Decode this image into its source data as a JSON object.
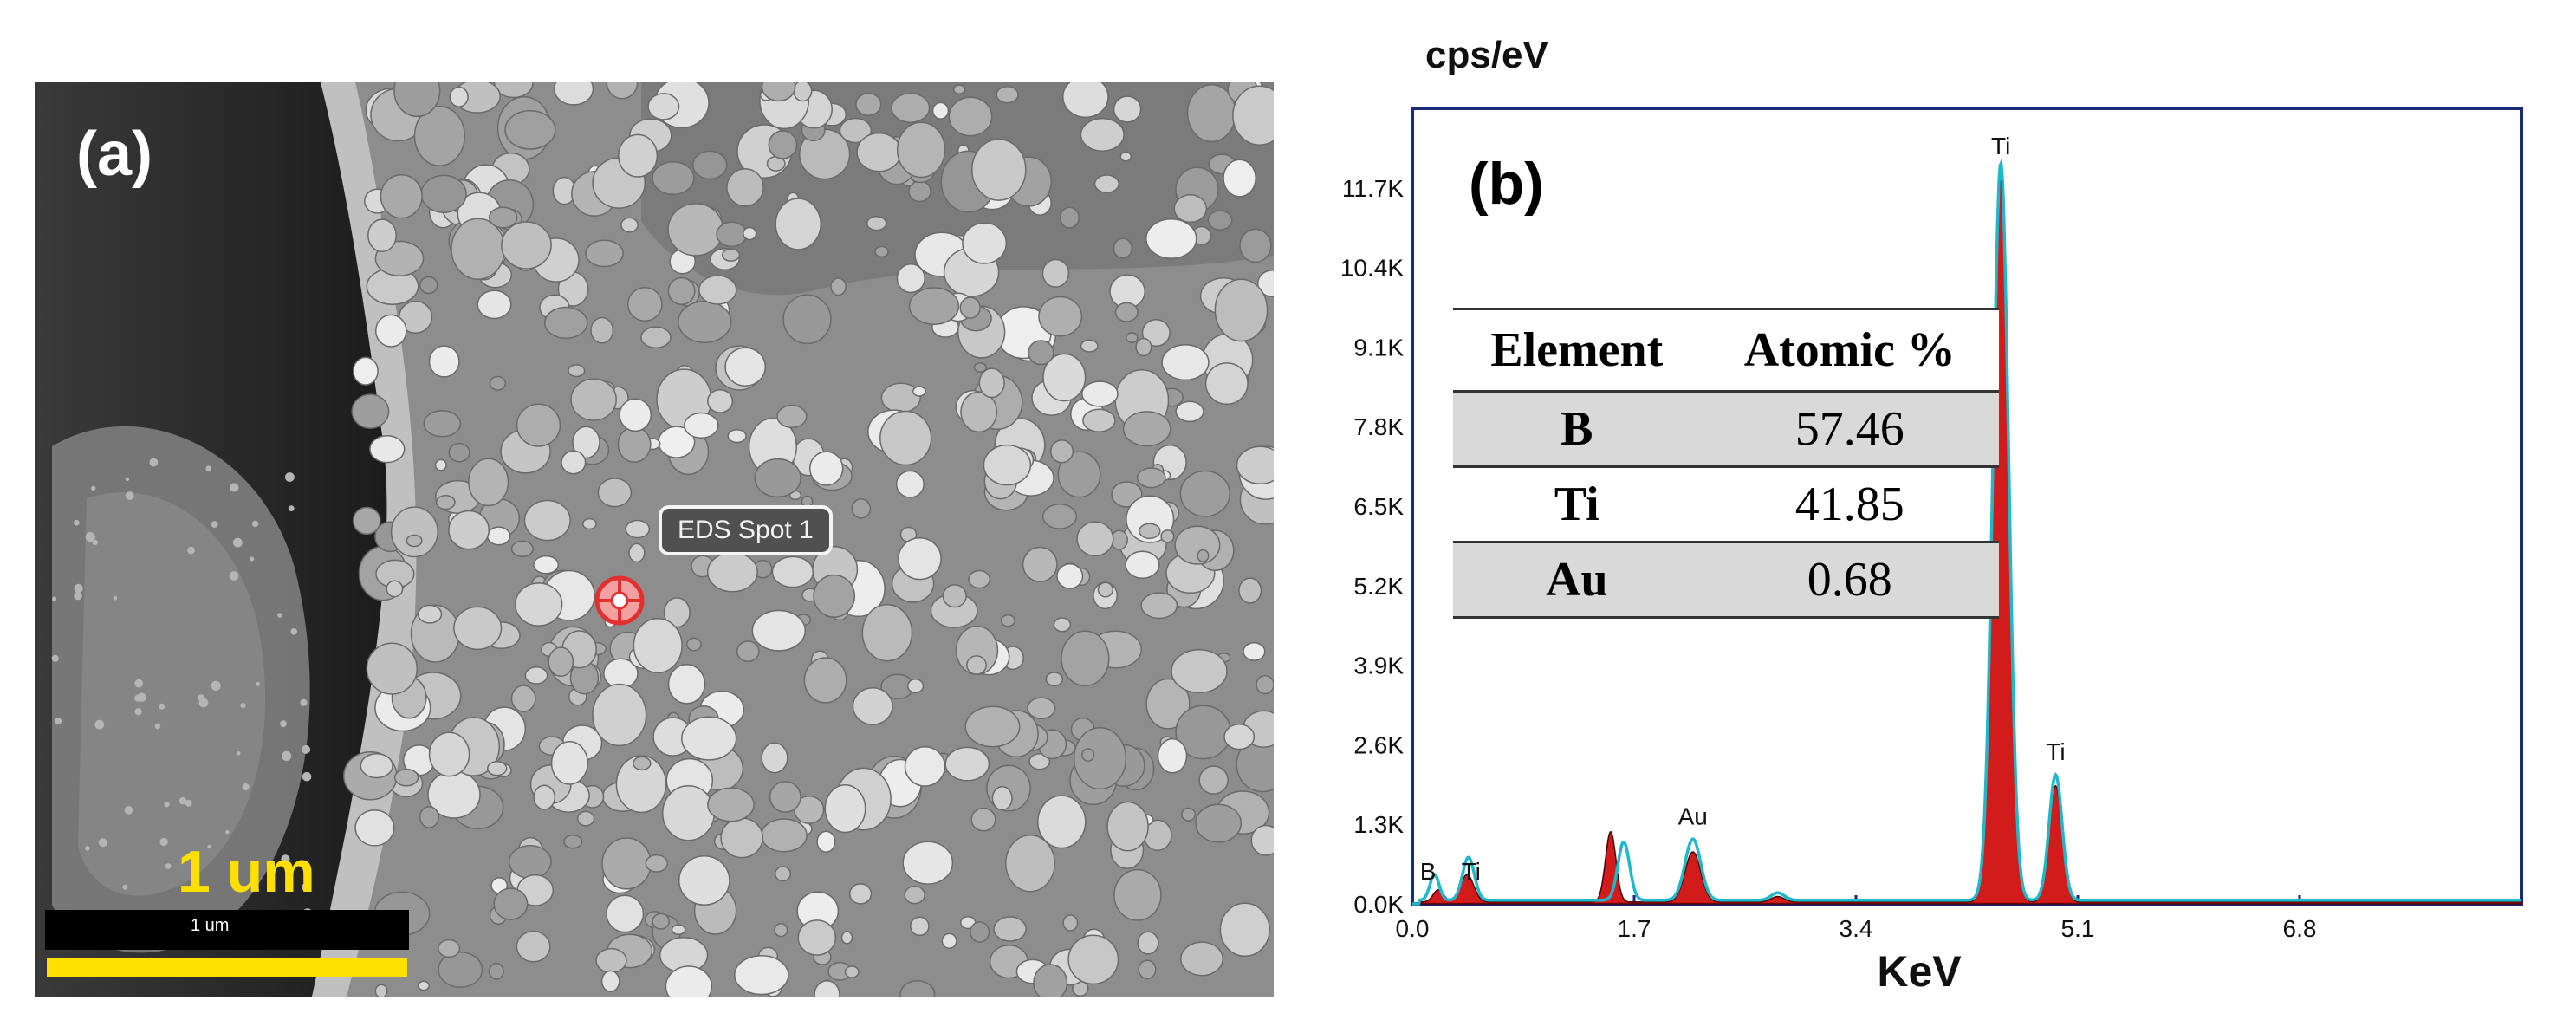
{
  "panel_a": {
    "label": "(a)",
    "eds_callout": "EDS Spot 1",
    "scale_bar_label_large": "1 um",
    "scale_bar_label_small": "1 um"
  },
  "panel_b": {
    "label": "(b)",
    "table": {
      "headers": [
        "Element",
        "Atomic %"
      ],
      "rows": [
        {
          "element": "B",
          "value": "57.46"
        },
        {
          "element": "Ti",
          "value": "41.85"
        },
        {
          "element": "Au",
          "value": "0.68"
        }
      ]
    }
  },
  "chart_data": {
    "type": "line",
    "title": "",
    "xlabel": "KeV",
    "ylabel": "cps/eV",
    "xlim": [
      0,
      8.5
    ],
    "ylim": [
      0,
      13000
    ],
    "x_ticks": [
      "0.0",
      "1.7",
      "3.4",
      "5.1",
      "6.8"
    ],
    "x_tick_values": [
      0,
      1.7,
      3.4,
      5.1,
      6.8
    ],
    "y_ticks": [
      "0.0K",
      "1.3K",
      "2.6K",
      "3.9K",
      "5.2K",
      "6.5K",
      "7.8K",
      "9.1K",
      "10.4K",
      "11.7K"
    ],
    "y_tick_values": [
      0,
      1300,
      2600,
      3900,
      5200,
      6500,
      7800,
      9100,
      10400,
      11700
    ],
    "peak_labels": [
      {
        "text": "B",
        "x": 0.12,
        "y": 200
      },
      {
        "text": "Ti",
        "x": 0.45,
        "y": 200
      },
      {
        "text": "Au",
        "x": 2.15,
        "y": 1100
      },
      {
        "text": "Ti",
        "x": 4.51,
        "y": 12050
      },
      {
        "text": "Ti",
        "x": 4.93,
        "y": 2150
      }
    ],
    "series": [
      {
        "color": "#d01010",
        "peaks": [
          {
            "x": 0.2,
            "y": 200,
            "w": 0.04
          },
          {
            "x": 0.42,
            "y": 450,
            "w": 0.05
          },
          {
            "x": 1.52,
            "y": 1150,
            "w": 0.04
          },
          {
            "x": 2.15,
            "y": 820,
            "w": 0.06
          },
          {
            "x": 2.8,
            "y": 90,
            "w": 0.05
          },
          {
            "x": 4.51,
            "y": 11800,
            "w": 0.06
          },
          {
            "x": 4.93,
            "y": 1900,
            "w": 0.05
          }
        ],
        "background": 30
      },
      {
        "color": "#1fb8c8",
        "peaks": [
          {
            "x": 0.17,
            "y": 420,
            "w": 0.035
          },
          {
            "x": 0.43,
            "y": 700,
            "w": 0.045
          },
          {
            "x": 1.62,
            "y": 950,
            "w": 0.045
          },
          {
            "x": 2.15,
            "y": 1000,
            "w": 0.06
          },
          {
            "x": 2.8,
            "y": 120,
            "w": 0.05
          },
          {
            "x": 4.51,
            "y": 12050,
            "w": 0.06
          },
          {
            "x": 4.93,
            "y": 2050,
            "w": 0.05
          }
        ],
        "background": 60
      }
    ],
    "legend": "none",
    "grid": false
  }
}
